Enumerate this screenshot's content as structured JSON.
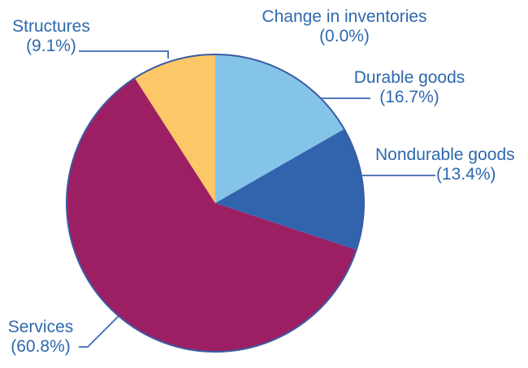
{
  "figure": {
    "background": "#FFFFFF"
  },
  "chart_data": {
    "type": "pie",
    "title": "",
    "start_angle_deg": 0,
    "direction": "clockwise",
    "legend": "none",
    "labels_style": "callout",
    "slices": [
      {
        "label": "Change in inventories",
        "value": 0.0,
        "pct_label": "(0.0%)",
        "color": null
      },
      {
        "label": "Durable goods",
        "value": 16.7,
        "pct_label": "(16.7%)",
        "color": "#85C4E9"
      },
      {
        "label": "Nondurable goods",
        "value": 13.4,
        "pct_label": "(13.4%)",
        "color": "#3264AE"
      },
      {
        "label": "Services",
        "value": 60.8,
        "pct_label": "(60.8%)",
        "color": "#9D1F63"
      },
      {
        "label": "Structures",
        "value": 9.1,
        "pct_label": "(9.1%)",
        "color": "#FCC766"
      }
    ],
    "outline_color": "#3B5BA5",
    "leader_line_color": "#3E68B2",
    "label_color": "#2E68AE"
  }
}
